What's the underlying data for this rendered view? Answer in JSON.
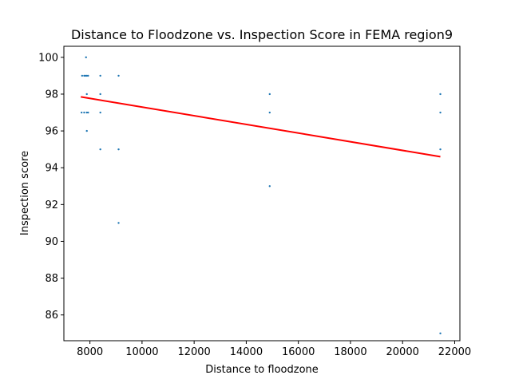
{
  "chart_data": {
    "type": "scatter",
    "title": "Distance to Floodzone vs. Inspection Score in FEMA region9",
    "xlabel": "Distance to floodzone",
    "ylabel": "Inspection score",
    "xlim": [
      7000,
      22200
    ],
    "ylim": [
      84.6,
      100.6
    ],
    "xticks": [
      8000,
      10000,
      12000,
      14000,
      16000,
      18000,
      20000,
      22000
    ],
    "yticks": [
      86,
      88,
      90,
      92,
      94,
      96,
      98,
      100
    ],
    "grid": false,
    "legend": "none",
    "point_color": "#1f77b4",
    "line_color": "#ff0000",
    "points": [
      {
        "x": 7850,
        "y": 100
      },
      {
        "x": 7700,
        "y": 99
      },
      {
        "x": 7780,
        "y": 99
      },
      {
        "x": 7830,
        "y": 99
      },
      {
        "x": 7880,
        "y": 99
      },
      {
        "x": 7930,
        "y": 99
      },
      {
        "x": 8400,
        "y": 99
      },
      {
        "x": 9100,
        "y": 99
      },
      {
        "x": 7880,
        "y": 98
      },
      {
        "x": 8400,
        "y": 98
      },
      {
        "x": 14900,
        "y": 98
      },
      {
        "x": 21450,
        "y": 98
      },
      {
        "x": 7680,
        "y": 97
      },
      {
        "x": 7780,
        "y": 97
      },
      {
        "x": 7880,
        "y": 97
      },
      {
        "x": 7930,
        "y": 97
      },
      {
        "x": 8400,
        "y": 97
      },
      {
        "x": 14900,
        "y": 97
      },
      {
        "x": 21450,
        "y": 97
      },
      {
        "x": 7880,
        "y": 96
      },
      {
        "x": 8400,
        "y": 95
      },
      {
        "x": 9100,
        "y": 95
      },
      {
        "x": 21450,
        "y": 95
      },
      {
        "x": 14900,
        "y": 93
      },
      {
        "x": 9100,
        "y": 91
      },
      {
        "x": 21450,
        "y": 85
      }
    ],
    "trendline": {
      "x": [
        7650,
        21450
      ],
      "y": [
        97.85,
        94.6
      ]
    }
  }
}
